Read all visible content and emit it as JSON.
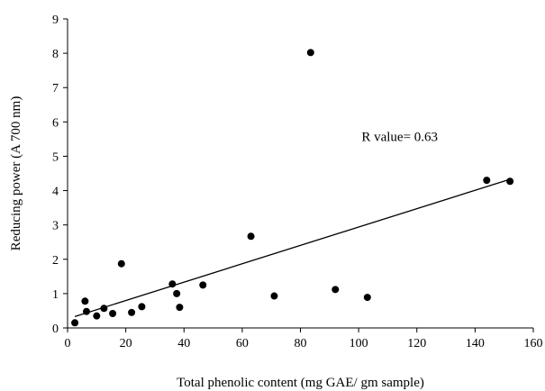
{
  "chart_data": {
    "type": "scatter",
    "title": "",
    "xlabel": "Total phenolic content (mg GAE/ gm sample)",
    "ylabel": "Reducing power (A 700 nm)",
    "xlim": [
      0,
      160
    ],
    "ylim": [
      0,
      9
    ],
    "xticks": [
      0,
      20,
      40,
      60,
      80,
      100,
      120,
      140,
      160
    ],
    "yticks": [
      0,
      1,
      2,
      3,
      4,
      5,
      6,
      7,
      8,
      9
    ],
    "grid": false,
    "legend": "none",
    "marker_color": "#000000",
    "points": [
      {
        "x": 2.5,
        "y": 0.15
      },
      {
        "x": 6.0,
        "y": 0.78
      },
      {
        "x": 6.5,
        "y": 0.48
      },
      {
        "x": 10.0,
        "y": 0.35
      },
      {
        "x": 12.5,
        "y": 0.57
      },
      {
        "x": 15.5,
        "y": 0.42
      },
      {
        "x": 18.5,
        "y": 1.87
      },
      {
        "x": 22.0,
        "y": 0.45
      },
      {
        "x": 25.5,
        "y": 0.62
      },
      {
        "x": 36.0,
        "y": 1.28
      },
      {
        "x": 37.5,
        "y": 1.0
      },
      {
        "x": 38.5,
        "y": 0.6
      },
      {
        "x": 46.5,
        "y": 1.25
      },
      {
        "x": 63.0,
        "y": 2.67
      },
      {
        "x": 71.0,
        "y": 0.93
      },
      {
        "x": 83.5,
        "y": 8.02
      },
      {
        "x": 92.0,
        "y": 1.12
      },
      {
        "x": 103.0,
        "y": 0.89
      },
      {
        "x": 144.0,
        "y": 4.3
      },
      {
        "x": 152.0,
        "y": 4.27
      }
    ],
    "trendline": {
      "x": [
        2.5,
        152.0
      ],
      "y": [
        0.33,
        4.33
      ]
    },
    "annotation": {
      "text": "R value= 0.63",
      "x": 101,
      "y": 5.45
    }
  }
}
